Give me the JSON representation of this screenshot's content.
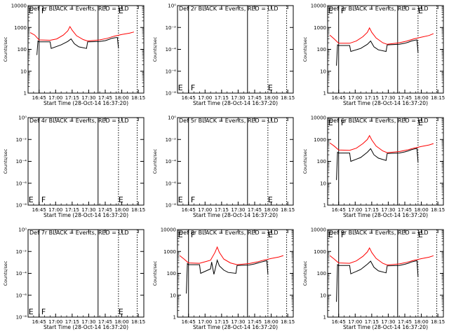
{
  "colors": {
    "events": "#000000",
    "lld": "#ff0000",
    "axis": "#000000",
    "background": "#ffffff"
  },
  "x_tick_labels": [
    "16:45",
    "17:00",
    "17:15",
    "17:30",
    "17:45",
    "18:00",
    "18:15"
  ],
  "x_tick_minutes": [
    0,
    15,
    30,
    45,
    60,
    75,
    90
  ],
  "xlabel": "Start Time (28-Oct-14 16:37:20)",
  "ylabel": "Counts/sec",
  "log_ticks": [
    "1",
    "10",
    "100",
    "1000",
    "10000"
  ],
  "empty_ticks": [
    "10⁰",
    "10⁻²",
    "10⁻⁴",
    "10⁻⁶",
    "10⁻⁸"
  ],
  "chart_data": [
    {
      "type": "line",
      "title": "Det 1r BLACK = Events, RED = LLD",
      "scale": "log",
      "ylim": [
        1,
        10000
      ],
      "letters": [
        "E",
        "F",
        "E"
      ],
      "events": [
        [
          -2,
          55
        ],
        [
          -1,
          240
        ],
        [
          0,
          220
        ],
        [
          10,
          220
        ],
        [
          11,
          110
        ],
        [
          20,
          160
        ],
        [
          26,
          230
        ],
        [
          29,
          300
        ],
        [
          32,
          180
        ],
        [
          36,
          130
        ],
        [
          43,
          110
        ],
        [
          44,
          220
        ],
        [
          55,
          230
        ],
        [
          60,
          250
        ],
        [
          63,
          280
        ],
        [
          66,
          320
        ],
        [
          69,
          340
        ],
        [
          71,
          350
        ],
        [
          72,
          110
        ]
      ],
      "lld": [
        [
          -8,
          580
        ],
        [
          -4,
          450
        ],
        [
          0,
          270
        ],
        [
          10,
          260
        ],
        [
          16,
          300
        ],
        [
          22,
          450
        ],
        [
          26,
          700
        ],
        [
          28,
          1100
        ],
        [
          30,
          750
        ],
        [
          34,
          420
        ],
        [
          40,
          280
        ],
        [
          44,
          240
        ],
        [
          55,
          270
        ],
        [
          62,
          320
        ],
        [
          68,
          400
        ],
        [
          75,
          480
        ],
        [
          82,
          550
        ],
        [
          86,
          620
        ]
      ]
    },
    {
      "type": "line",
      "title": "Det 2r BLACK = Events, RED = LLD",
      "scale": "empty",
      "ylim": [
        1e-08,
        1
      ],
      "letters": [
        "E",
        "F",
        "E"
      ],
      "events": [],
      "lld": []
    },
    {
      "type": "line",
      "title": "Det 3r BLACK = Events, RED = LLD",
      "scale": "log",
      "ylim": [
        1,
        10000
      ],
      "letters": [
        "E",
        "F",
        "E"
      ],
      "events": [
        [
          -2,
          18
        ],
        [
          -1,
          160
        ],
        [
          0,
          150
        ],
        [
          10,
          150
        ],
        [
          11,
          80
        ],
        [
          20,
          110
        ],
        [
          26,
          170
        ],
        [
          29,
          240
        ],
        [
          32,
          130
        ],
        [
          36,
          95
        ],
        [
          43,
          80
        ],
        [
          44,
          160
        ],
        [
          55,
          170
        ],
        [
          60,
          190
        ],
        [
          63,
          210
        ],
        [
          66,
          240
        ],
        [
          69,
          260
        ],
        [
          71,
          270
        ],
        [
          72,
          70
        ]
      ],
      "lld": [
        [
          -8,
          450
        ],
        [
          -4,
          300
        ],
        [
          0,
          190
        ],
        [
          10,
          190
        ],
        [
          16,
          240
        ],
        [
          22,
          380
        ],
        [
          26,
          600
        ],
        [
          28,
          950
        ],
        [
          30,
          600
        ],
        [
          34,
          330
        ],
        [
          40,
          200
        ],
        [
          44,
          170
        ],
        [
          55,
          200
        ],
        [
          62,
          240
        ],
        [
          68,
          300
        ],
        [
          75,
          360
        ],
        [
          82,
          430
        ],
        [
          86,
          520
        ]
      ]
    },
    {
      "type": "line",
      "title": "Det 4r BLACK = Events, RED = LLD",
      "scale": "empty",
      "ylim": [
        1e-08,
        1
      ],
      "letters": [
        "E",
        "F",
        "E"
      ],
      "events": [],
      "lld": []
    },
    {
      "type": "line",
      "title": "Det 5r BLACK = Events, RED = LLD",
      "scale": "empty",
      "ylim": [
        1e-08,
        1
      ],
      "letters": [
        "E",
        "F",
        "E"
      ],
      "events": [],
      "lld": []
    },
    {
      "type": "line",
      "title": "Det 6r BLACK = Events, RED = LLD",
      "scale": "log",
      "ylim": [
        1,
        10000
      ],
      "letters": [
        "E",
        "F",
        "E"
      ],
      "events": [
        [
          -2,
          14
        ],
        [
          -1,
          260
        ],
        [
          0,
          240
        ],
        [
          10,
          240
        ],
        [
          11,
          100
        ],
        [
          20,
          150
        ],
        [
          26,
          260
        ],
        [
          29,
          380
        ],
        [
          32,
          200
        ],
        [
          36,
          140
        ],
        [
          43,
          110
        ],
        [
          44,
          230
        ],
        [
          55,
          240
        ],
        [
          60,
          270
        ],
        [
          63,
          300
        ],
        [
          66,
          340
        ],
        [
          69,
          370
        ],
        [
          71,
          390
        ],
        [
          72,
          90
        ]
      ],
      "lld": [
        [
          -8,
          700
        ],
        [
          -4,
          500
        ],
        [
          0,
          330
        ],
        [
          10,
          320
        ],
        [
          16,
          400
        ],
        [
          22,
          650
        ],
        [
          26,
          1000
        ],
        [
          28,
          1500
        ],
        [
          30,
          950
        ],
        [
          34,
          500
        ],
        [
          40,
          300
        ],
        [
          44,
          250
        ],
        [
          55,
          280
        ],
        [
          62,
          330
        ],
        [
          68,
          400
        ],
        [
          75,
          480
        ],
        [
          82,
          560
        ],
        [
          86,
          650
        ]
      ]
    },
    {
      "type": "line",
      "title": "Det 7r BLACK = Events, RED = LLD",
      "scale": "empty",
      "ylim": [
        1e-08,
        1
      ],
      "letters": [
        "E",
        "F",
        "E"
      ],
      "events": [],
      "lld": []
    },
    {
      "type": "line",
      "title": "Det 8r BLACK = Events, RED = LLD",
      "scale": "log",
      "ylim": [
        1,
        10000
      ],
      "letters": [
        "E",
        "F",
        "E"
      ],
      "events": [
        [
          -2,
          12
        ],
        [
          -1,
          280
        ],
        [
          0,
          250
        ],
        [
          10,
          250
        ],
        [
          11,
          100
        ],
        [
          20,
          160
        ],
        [
          21,
          330
        ],
        [
          23,
          90
        ],
        [
          24,
          140
        ],
        [
          26,
          400
        ],
        [
          28,
          220
        ],
        [
          32,
          140
        ],
        [
          36,
          110
        ],
        [
          43,
          100
        ],
        [
          44,
          230
        ],
        [
          55,
          240
        ],
        [
          60,
          270
        ],
        [
          63,
          300
        ],
        [
          66,
          330
        ],
        [
          69,
          360
        ],
        [
          71,
          380
        ],
        [
          72,
          90
        ]
      ],
      "lld": [
        [
          -8,
          650
        ],
        [
          -4,
          450
        ],
        [
          0,
          300
        ],
        [
          10,
          290
        ],
        [
          16,
          350
        ],
        [
          20,
          400
        ],
        [
          24,
          900
        ],
        [
          26,
          1600
        ],
        [
          28,
          900
        ],
        [
          32,
          450
        ],
        [
          38,
          300
        ],
        [
          44,
          250
        ],
        [
          55,
          280
        ],
        [
          62,
          330
        ],
        [
          68,
          400
        ],
        [
          75,
          480
        ],
        [
          82,
          560
        ],
        [
          86,
          650
        ]
      ]
    },
    {
      "type": "line",
      "title": "Det 9r BLACK = Events, RED = LLD",
      "scale": "log",
      "ylim": [
        1,
        10000
      ],
      "letters": [
        "E",
        "F",
        "E"
      ],
      "events": [
        [
          -2,
          5
        ],
        [
          -1,
          250
        ],
        [
          0,
          230
        ],
        [
          10,
          230
        ],
        [
          11,
          95
        ],
        [
          20,
          150
        ],
        [
          26,
          260
        ],
        [
          29,
          360
        ],
        [
          32,
          190
        ],
        [
          36,
          130
        ],
        [
          43,
          105
        ],
        [
          44,
          220
        ],
        [
          55,
          230
        ],
        [
          60,
          260
        ],
        [
          63,
          290
        ],
        [
          66,
          330
        ],
        [
          69,
          360
        ],
        [
          71,
          380
        ],
        [
          72,
          70
        ]
      ],
      "lld": [
        [
          -8,
          650
        ],
        [
          -4,
          450
        ],
        [
          0,
          300
        ],
        [
          10,
          290
        ],
        [
          16,
          370
        ],
        [
          22,
          600
        ],
        [
          26,
          950
        ],
        [
          28,
          1450
        ],
        [
          30,
          900
        ],
        [
          34,
          480
        ],
        [
          40,
          290
        ],
        [
          44,
          240
        ],
        [
          55,
          270
        ],
        [
          62,
          320
        ],
        [
          68,
          390
        ],
        [
          75,
          470
        ],
        [
          82,
          550
        ],
        [
          86,
          640
        ]
      ]
    }
  ]
}
